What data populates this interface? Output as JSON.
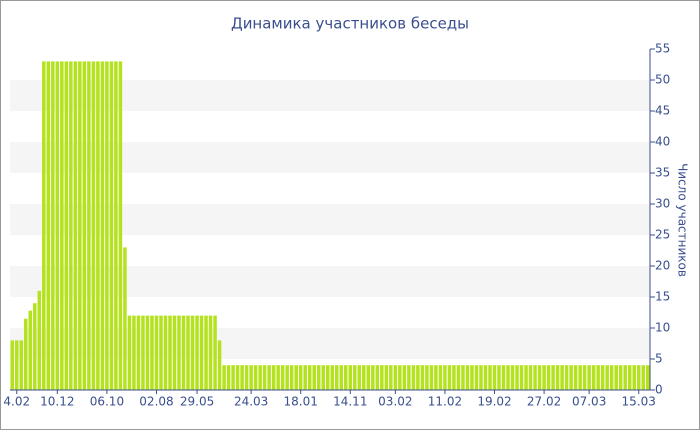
{
  "chart_data": {
    "type": "bar",
    "title": "Динамика участников беседы",
    "y_label": "Число участников",
    "color": "#b5e21f",
    "categories": [
      null,
      "4.02",
      null,
      null,
      null,
      null,
      null,
      null,
      null,
      null,
      "10.12",
      null,
      null,
      null,
      null,
      null,
      null,
      null,
      null,
      null,
      null,
      "06.10",
      null,
      null,
      null,
      null,
      null,
      null,
      null,
      null,
      null,
      null,
      "02.08",
      null,
      null,
      null,
      null,
      null,
      null,
      null,
      null,
      "29.05",
      null,
      null,
      null,
      null,
      null,
      null,
      null,
      null,
      null,
      null,
      null,
      "24.03",
      null,
      null,
      null,
      null,
      null,
      null,
      null,
      null,
      null,
      null,
      "18.01",
      null,
      null,
      null,
      null,
      null,
      null,
      null,
      null,
      null,
      null,
      "14.11",
      null,
      null,
      null,
      null,
      null,
      null,
      null,
      null,
      null,
      "03.02",
      null,
      null,
      null,
      null,
      null,
      null,
      null,
      null,
      null,
      null,
      "11.02",
      null,
      null,
      null,
      null,
      null,
      null,
      null,
      null,
      null,
      null,
      "19.02",
      null,
      null,
      null,
      null,
      null,
      null,
      null,
      null,
      null,
      null,
      "27.02",
      null,
      null,
      null,
      null,
      null,
      null,
      null,
      null,
      null,
      "07.03",
      null,
      null,
      null,
      null,
      null,
      null,
      null,
      null,
      null,
      null,
      "15.03",
      null,
      null
    ],
    "values": [
      8,
      8,
      8,
      11.5,
      12.8,
      14,
      16,
      53,
      53,
      53,
      53,
      53,
      53,
      53,
      53,
      53,
      53,
      53,
      53,
      53,
      53,
      53,
      53,
      53,
      53,
      23,
      12,
      12,
      12,
      12,
      12,
      12,
      12,
      12,
      12,
      12,
      12,
      12,
      12,
      12,
      12,
      12,
      12,
      12,
      12,
      12,
      8,
      4,
      4,
      4,
      4,
      4,
      4,
      4,
      4,
      4,
      4,
      4,
      4,
      4,
      4,
      4,
      4,
      4,
      4,
      4,
      4,
      4,
      4,
      4,
      4,
      4,
      4,
      4,
      4,
      4,
      4,
      4,
      4,
      4,
      4,
      4,
      4,
      4,
      4,
      4,
      4,
      4,
      4,
      4,
      4,
      4,
      4,
      4,
      4,
      4,
      4,
      4,
      4,
      4,
      4,
      4,
      4,
      4,
      4,
      4,
      4,
      4,
      4,
      4,
      4,
      4,
      4,
      4,
      4,
      4,
      4,
      4,
      4,
      4,
      4,
      4,
      4,
      4,
      4,
      4,
      4,
      4,
      4,
      4,
      4,
      4,
      4,
      4,
      4,
      4,
      4,
      4,
      4,
      4,
      4,
      4
    ],
    "ylim": [
      0,
      55
    ],
    "yticks": [
      0,
      5,
      10,
      15,
      20,
      25,
      30,
      35,
      40,
      45,
      50,
      55
    ],
    "grid": "bands"
  }
}
